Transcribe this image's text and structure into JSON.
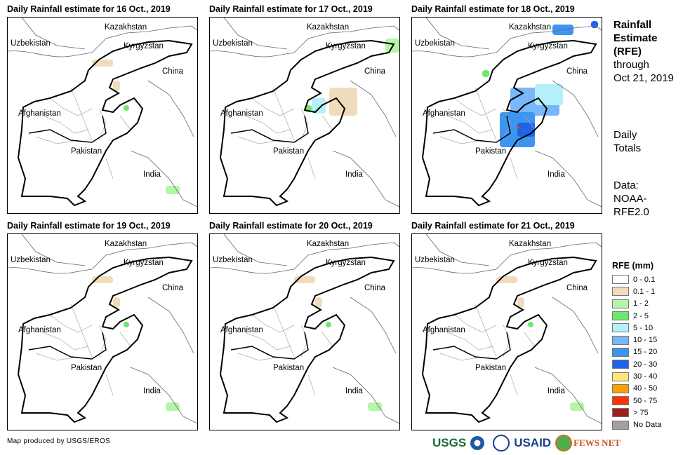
{
  "panels": [
    {
      "title": "Daily Rainfall estimate for 16 Oct., 2019",
      "rain": "light"
    },
    {
      "title": "Daily Rainfall estimate for 17 Oct., 2019",
      "rain": "moderate"
    },
    {
      "title": "Daily Rainfall estimate for 18 Oct., 2019",
      "rain": "heavy"
    },
    {
      "title": "Daily Rainfall estimate for 19 Oct., 2019",
      "rain": "light"
    },
    {
      "title": "Daily Rainfall estimate for 20 Oct., 2019",
      "rain": "light"
    },
    {
      "title": "Daily Rainfall estimate for 21 Oct., 2019",
      "rain": "light"
    }
  ],
  "map_labels": {
    "kazakhstan": "Kazakhstan",
    "uzbekistan": "Uzbekistan",
    "kyrgyzstan": "Kyrgyzstan",
    "china": "China",
    "afghanistan": "Afghanistan",
    "pakistan": "Pakistan",
    "india": "India"
  },
  "side": {
    "title_lines": [
      "Rainfall",
      "Estimate",
      "(RFE)"
    ],
    "through": "through",
    "date": "Oct 21, 2019",
    "daily": "Daily",
    "totals": "Totals",
    "data_label": "Data:",
    "data_src1": "NOAA-",
    "data_src2": "RFE2.0"
  },
  "legend": {
    "title": "RFE (mm)",
    "items": [
      {
        "label": "0 - 0.1",
        "color": "#ffffff"
      },
      {
        "label": "0.1 - 1",
        "color": "#f0dcbc"
      },
      {
        "label": "1 - 2",
        "color": "#b4f5a8"
      },
      {
        "label": "2 - 5",
        "color": "#6ee86a"
      },
      {
        "label": "5 - 10",
        "color": "#b4f0f8"
      },
      {
        "label": "10 - 15",
        "color": "#78b8f8"
      },
      {
        "label": "15 - 20",
        "color": "#3c96f0"
      },
      {
        "label": "20 - 30",
        "color": "#1e64e6"
      },
      {
        "label": "30 - 40",
        "color": "#ffe678"
      },
      {
        "label": "40 - 50",
        "color": "#ffa000"
      },
      {
        "label": "50 - 75",
        "color": "#ff3200"
      },
      {
        "label": "> 75",
        "color": "#a01e1e"
      },
      {
        "label": "No Data",
        "color": "#a0a0a0"
      }
    ]
  },
  "footer": {
    "credit": "Map produced by USGS/EROS"
  },
  "logos": {
    "usgs": "USGS",
    "usaid": "USAID",
    "fewsnet": "FEWS NET"
  }
}
